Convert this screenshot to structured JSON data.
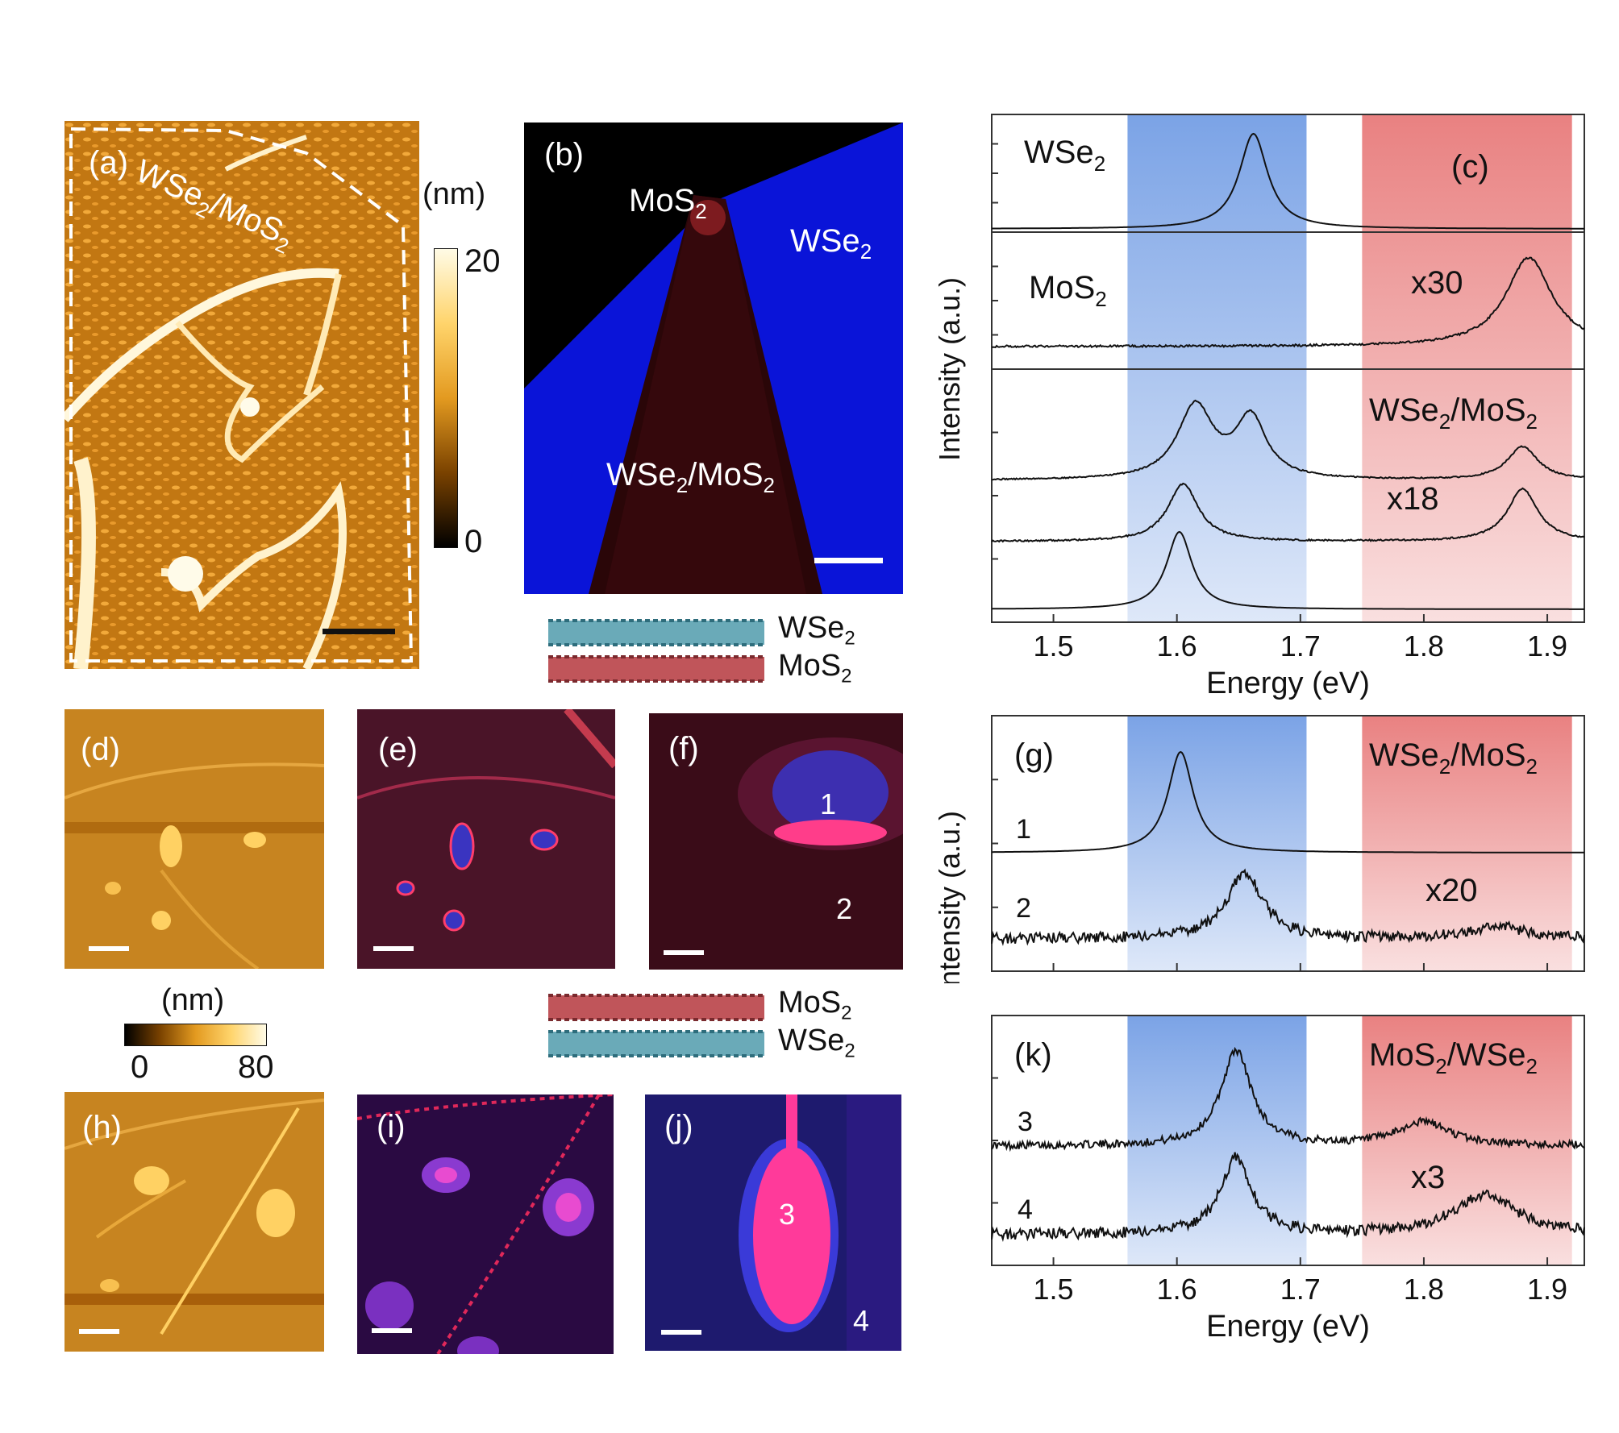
{
  "panels": {
    "a": {
      "label": "(a)",
      "region": "WSe",
      "region_sub1": "2",
      "region_sep": "/MoS",
      "region_sub2": "2"
    },
    "a_colorbar": {
      "unit": "(nm)",
      "max": "20",
      "min": "0"
    },
    "b": {
      "label": "(b)",
      "mos2": "MoS",
      "mos2_sub": "2",
      "wse2": "WSe",
      "wse2_sub": "2",
      "hetero": "WSe",
      "hetero_sub1": "2",
      "hetero_sep": "/MoS",
      "hetero_sub2": "2"
    },
    "stack_top": {
      "top": "WSe",
      "top_sub": "2",
      "bottom": "MoS",
      "bottom_sub": "2"
    },
    "stack_bottom": {
      "top": "MoS",
      "top_sub": "2",
      "bottom": "WSe",
      "bottom_sub": "2"
    },
    "d": {
      "label": "(d)"
    },
    "e": {
      "label": "(e)"
    },
    "f": {
      "label": "(f)",
      "point1": "1",
      "point2": "2"
    },
    "dh_colorbar": {
      "unit": "(nm)",
      "min": "0",
      "max": "80"
    },
    "h": {
      "label": "(h)"
    },
    "i": {
      "label": "(i)"
    },
    "j": {
      "label": "(j)",
      "point3": "3",
      "point4": "4"
    }
  },
  "chart_data": [
    {
      "id": "c",
      "type": "line",
      "label": "(c)",
      "xlabel": "Energy (eV)",
      "ylabel": "Intensity (a.u.)",
      "xlim": [
        1.45,
        1.93
      ],
      "xticks": [
        "1.5",
        "1.6",
        "1.7",
        "1.8",
        "1.9"
      ],
      "bands": [
        {
          "from": 1.56,
          "to": 1.705,
          "color": "#7ba3e6"
        },
        {
          "from": 1.75,
          "to": 1.92,
          "color": "#e98181"
        }
      ],
      "subplots": [
        {
          "name": "WSe2",
          "text": "WSe",
          "sub": "2",
          "series": [
            {
              "name": "WSe2",
              "peaks": [
                [
                  1.662,
                  0.028,
                  1.0
                ]
              ],
              "noise": 0.0
            }
          ]
        },
        {
          "name": "MoS2",
          "text": "MoS",
          "sub": "2",
          "scale": "x30",
          "series": [
            {
              "name": "MoS2",
              "peaks": [
                [
                  1.885,
                  0.045,
                  0.85
                ]
              ],
              "noise": 0.02
            }
          ]
        },
        {
          "name": "WSe2/MoS2",
          "text": "WSe",
          "sub": "2",
          "sep": "/MoS",
          "sub2": "2",
          "scale": "x18",
          "series": [
            {
              "name": "trace-1",
              "peaks": [
                [
                  1.615,
                  0.035,
                  0.55
                ],
                [
                  1.66,
                  0.03,
                  0.45
                ],
                [
                  1.88,
                  0.03,
                  0.25
                ]
              ],
              "noise": 0.01
            },
            {
              "name": "trace-2",
              "peaks": [
                [
                  1.605,
                  0.03,
                  0.55
                ],
                [
                  1.88,
                  0.03,
                  0.5
                ]
              ],
              "noise": 0.015
            },
            {
              "name": "trace-3",
              "peaks": [
                [
                  1.602,
                  0.025,
                  0.8
                ]
              ],
              "noise": 0.0
            }
          ]
        }
      ]
    },
    {
      "id": "g",
      "type": "line",
      "label": "(g)",
      "title": "WSe",
      "title_sub": "2",
      "title_sep": "/MoS",
      "title_sub2": "2",
      "ylabel": "Intensity (a.u.)",
      "xlim": [
        1.45,
        1.93
      ],
      "scale": "x20",
      "series": [
        {
          "name": "1",
          "peaks": [
            [
              1.603,
              0.025,
              1.0
            ]
          ],
          "noise": 0.0
        },
        {
          "name": "2",
          "peaks": [
            [
              1.655,
              0.035,
              0.75
            ],
            [
              1.86,
              0.05,
              0.15
            ]
          ],
          "noise": 0.12
        }
      ]
    },
    {
      "id": "k",
      "type": "line",
      "label": "(k)",
      "title": "MoS",
      "title_sub": "2",
      "title_sep": "/WSe",
      "title_sub2": "2",
      "xlabel": "Energy (eV)",
      "xlim": [
        1.45,
        1.93
      ],
      "xticks": [
        "1.5",
        "1.6",
        "1.7",
        "1.8",
        "1.9"
      ],
      "scale": "x3",
      "series": [
        {
          "name": "3",
          "peaks": [
            [
              1.648,
              0.03,
              1.0
            ],
            [
              1.8,
              0.05,
              0.25
            ]
          ],
          "noise": 0.08
        },
        {
          "name": "4",
          "peaks": [
            [
              1.648,
              0.03,
              0.85
            ],
            [
              1.85,
              0.06,
              0.45
            ]
          ],
          "noise": 0.12
        }
      ]
    }
  ]
}
